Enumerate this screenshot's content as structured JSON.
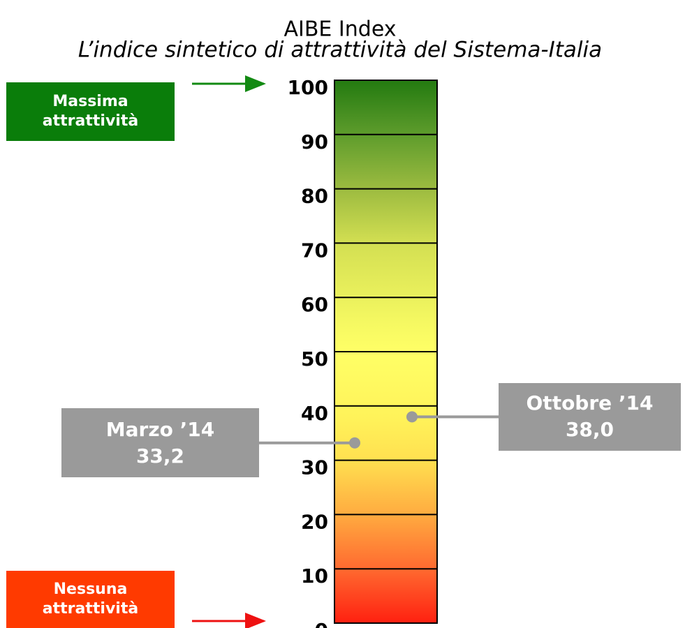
{
  "chart_data": {
    "type": "gauge",
    "title": "AIBE Index",
    "subtitle": "L’indice sintetico di attrattività del Sistema-Italia",
    "ylim": [
      0,
      100
    ],
    "yticks": [
      0,
      10,
      20,
      30,
      40,
      50,
      60,
      70,
      80,
      90,
      100
    ],
    "categories": [
      "Marzo ’14",
      "Ottobre ’14"
    ],
    "values": [
      33.2,
      38.0
    ],
    "value_labels": [
      "33,2",
      "38,0"
    ],
    "color": "#9a9a9a",
    "annotations": {
      "top": "Massima attrattività",
      "bottom": "Nessuna attrattività"
    }
  }
}
